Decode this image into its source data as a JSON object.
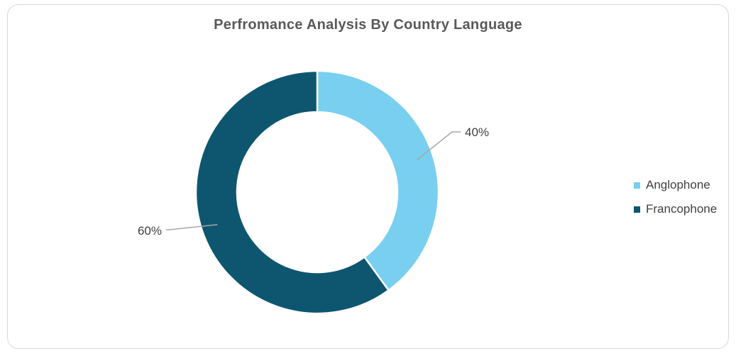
{
  "chart_data": {
    "type": "pie",
    "donut": true,
    "title": "Perfromance Analysis By Country Language",
    "categories": [
      "Anglophone",
      "Francophone"
    ],
    "values": [
      40,
      60
    ],
    "labels": [
      "40%",
      "60%"
    ],
    "colors": [
      "#79CFEF",
      "#0E5670"
    ],
    "legend_position": "right"
  }
}
